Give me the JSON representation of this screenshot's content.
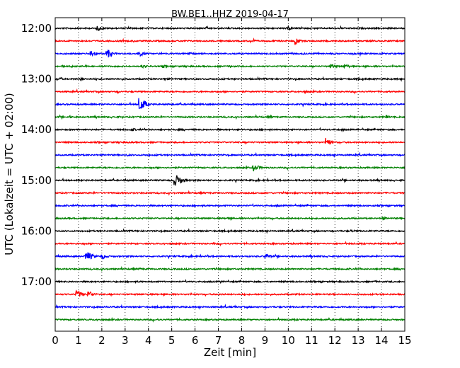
{
  "chart_data": {
    "type": "line",
    "title": "BW.BE1..HHZ 2019-04-17",
    "xlabel": "Zeit  [min]",
    "ylabel": "UTC (Lokalzeit = UTC + 02:00)",
    "xlim": [
      0,
      15
    ],
    "x_ticks": [
      0,
      1,
      2,
      3,
      4,
      5,
      6,
      7,
      8,
      9,
      10,
      11,
      12,
      13,
      14,
      15
    ],
    "x_tick_labels": [
      "0",
      "1",
      "2",
      "3",
      "4",
      "5",
      "6",
      "7",
      "8",
      "9",
      "10",
      "11",
      "12",
      "13",
      "14",
      "15"
    ],
    "y_ticks": [
      "12:00",
      "13:00",
      "14:00",
      "15:00",
      "16:00",
      "17:00"
    ],
    "grid": "vertical dotted at each minute",
    "trace_interval_minutes": 15,
    "trace_colors": [
      "#000000",
      "#ff0000",
      "#0000ff",
      "#008000"
    ],
    "series": [
      {
        "start": "12:00",
        "bursts": [
          [
            1.8,
            2.4,
            8
          ],
          [
            3.5,
            0.4,
            4
          ],
          [
            10.0,
            2.6,
            6
          ]
        ]
      },
      {
        "start": "12:15",
        "bursts": [
          [
            8.4,
            1.6,
            6
          ],
          [
            10.3,
            3.8,
            7
          ]
        ]
      },
      {
        "start": "12:30",
        "bursts": [
          [
            1.5,
            4.0,
            10
          ],
          [
            2.2,
            5.0,
            10
          ],
          [
            3.6,
            2.6,
            8
          ],
          [
            5.7,
            1.4,
            6
          ]
        ]
      },
      {
        "start": "12:45",
        "bursts": [
          [
            3.7,
            1.6,
            8
          ],
          [
            4.6,
            1.0,
            6
          ],
          [
            7.5,
            1.0,
            5
          ],
          [
            11.8,
            2.0,
            10
          ],
          [
            12.4,
            2.4,
            8
          ]
        ]
      },
      {
        "start": "13:00",
        "bursts": [
          [
            0.2,
            2.4,
            3
          ],
          [
            1.1,
            2.4,
            4
          ],
          [
            4.7,
            2.6,
            3
          ]
        ]
      },
      {
        "start": "13:15",
        "bursts": [
          [
            2.7,
            1.4,
            2
          ],
          [
            10.7,
            0.8,
            5
          ]
        ]
      },
      {
        "start": "13:30",
        "bursts": [
          [
            3.6,
            8.5,
            12
          ]
        ]
      },
      {
        "start": "13:45",
        "bursts": [
          [
            0.6,
            1.4,
            3
          ],
          [
            9.2,
            1.0,
            4
          ],
          [
            14.2,
            1.8,
            3
          ]
        ]
      },
      {
        "start": "14:00",
        "bursts": [
          [
            3.3,
            1.2,
            6
          ],
          [
            12.3,
            1.0,
            3
          ]
        ]
      },
      {
        "start": "14:15",
        "bursts": [
          [
            11.6,
            4.0,
            10
          ]
        ]
      },
      {
        "start": "14:30",
        "bursts": [
          [
            3.1,
            0.8,
            4
          ],
          [
            4.0,
            0.8,
            3
          ]
        ]
      },
      {
        "start": "14:45",
        "bursts": [
          [
            8.5,
            3.6,
            10
          ]
        ]
      },
      {
        "start": "15:00",
        "bursts": [
          [
            5.1,
            7.0,
            15
          ]
        ]
      },
      {
        "start": "15:15",
        "bursts": [
          [
            9.0,
            0.4,
            5
          ]
        ]
      },
      {
        "start": "15:30",
        "bursts": [
          [
            9.5,
            0.4,
            5
          ]
        ]
      },
      {
        "start": "15:45",
        "bursts": [
          [
            7.4,
            1.4,
            4
          ],
          [
            14.0,
            1.6,
            6
          ]
        ]
      },
      {
        "start": "16:00",
        "bursts": [
          [
            10.2,
            0.6,
            4
          ],
          [
            12.7,
            0.8,
            4
          ]
        ]
      },
      {
        "start": "16:15",
        "bursts": [
          [
            6.8,
            1.4,
            2
          ]
        ]
      },
      {
        "start": "16:30",
        "bursts": [
          [
            1.3,
            6.0,
            12
          ],
          [
            2.0,
            3.0,
            8
          ],
          [
            9.0,
            3.6,
            8
          ]
        ]
      },
      {
        "start": "16:45",
        "bursts": [
          [
            3.6,
            0.8,
            4
          ]
        ]
      },
      {
        "start": "17:00",
        "bursts": [
          [
            7.1,
            1.2,
            2
          ],
          [
            13.7,
            1.0,
            3
          ]
        ]
      },
      {
        "start": "17:15",
        "bursts": [
          [
            0.9,
            4.4,
            10
          ],
          [
            1.4,
            3.6,
            10
          ],
          [
            10.3,
            0.8,
            4
          ]
        ]
      },
      {
        "start": "17:30",
        "bursts": []
      },
      {
        "start": "17:45",
        "bursts": [
          [
            4.4,
            0.4,
            4
          ]
        ]
      }
    ]
  }
}
